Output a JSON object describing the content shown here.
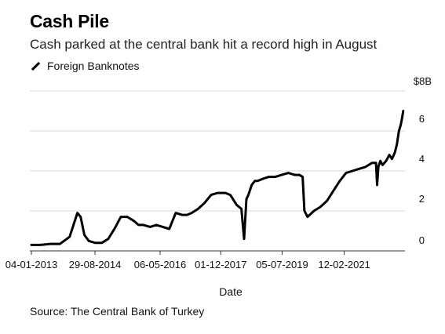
{
  "header": {
    "title": "Cash Pile",
    "subtitle": "Cash parked at the central bank hit a record high in August"
  },
  "source": "Source: The Central Bank of Turkey",
  "colors": {
    "line": "#000000",
    "grid": "#d9d9d9",
    "axis": "#333333"
  },
  "chart_data": {
    "type": "line",
    "title": "Cash Pile",
    "subtitle": "Cash parked at the central bank hit a record high in August",
    "xlabel": "Date",
    "ylabel": "",
    "y_unit_label": "$8B",
    "xlim": [
      "2012-12-20",
      "2022-09-10"
    ],
    "ylim": [
      0,
      8
    ],
    "yticks": [
      0,
      2,
      4,
      6
    ],
    "ytick_labels": [
      "0",
      "2",
      "4",
      "6"
    ],
    "xticks": [
      "2013-01-04",
      "2014-08-29",
      "2016-05-06",
      "2017-12-01",
      "2019-07-05",
      "2021-02-12"
    ],
    "xtick_labels": [
      "04-01-2013",
      "29-08-2014",
      "06-05-2016",
      "01-12-2017",
      "05-07-2019",
      "12-02-2021"
    ],
    "grid": true,
    "legend_position": "top-left",
    "series": [
      {
        "name": "Foreign Banknotes",
        "x": [
          "2013-01-04",
          "2013-04-01",
          "2013-07-01",
          "2013-10-01",
          "2014-01-01",
          "2014-03-15",
          "2014-04-15",
          "2014-05-20",
          "2014-07-01",
          "2014-09-01",
          "2014-11-01",
          "2015-01-01",
          "2015-03-01",
          "2015-05-01",
          "2015-07-01",
          "2015-09-01",
          "2015-10-15",
          "2015-12-01",
          "2016-02-01",
          "2016-04-01",
          "2016-06-01",
          "2016-08-01",
          "2016-10-01",
          "2016-12-01",
          "2017-01-15",
          "2017-03-01",
          "2017-05-01",
          "2017-07-01",
          "2017-09-01",
          "2017-11-01",
          "2017-12-15",
          "2018-01-15",
          "2018-03-01",
          "2018-05-01",
          "2018-06-15",
          "2018-07-10",
          "2018-08-01",
          "2018-08-20",
          "2018-09-20",
          "2018-10-20",
          "2018-11-15",
          "2019-01-01",
          "2019-03-01",
          "2019-05-01",
          "2019-07-01",
          "2019-09-01",
          "2019-11-01",
          "2019-12-15",
          "2020-01-15",
          "2020-02-01",
          "2020-03-01",
          "2020-05-01",
          "2020-07-01",
          "2020-09-01",
          "2020-11-01",
          "2021-01-01",
          "2021-03-01",
          "2021-05-01",
          "2021-07-01",
          "2021-09-01",
          "2021-11-01",
          "2021-12-10",
          "2021-12-20",
          "2022-01-01",
          "2022-01-20",
          "2022-02-10",
          "2022-03-15",
          "2022-04-15",
          "2022-05-10",
          "2022-06-05",
          "2022-06-25",
          "2022-07-15",
          "2022-08-01",
          "2022-08-12",
          "2022-08-25"
        ],
        "values": [
          0.3,
          0.3,
          0.35,
          0.35,
          0.7,
          1.9,
          1.7,
          0.8,
          0.5,
          0.4,
          0.4,
          0.6,
          1.1,
          1.7,
          1.7,
          1.5,
          1.3,
          1.3,
          1.2,
          1.3,
          1.2,
          1.1,
          1.9,
          1.8,
          1.8,
          1.9,
          2.1,
          2.4,
          2.8,
          2.9,
          2.9,
          2.9,
          2.8,
          2.3,
          2.1,
          0.6,
          2.6,
          2.8,
          3.3,
          3.5,
          3.5,
          3.6,
          3.7,
          3.7,
          3.8,
          3.9,
          3.8,
          3.8,
          3.7,
          2.0,
          1.7,
          2.0,
          2.2,
          2.5,
          3.0,
          3.5,
          3.9,
          4.0,
          4.1,
          4.2,
          4.4,
          4.4,
          3.3,
          4.2,
          4.5,
          4.3,
          4.5,
          4.8,
          4.6,
          4.9,
          5.3,
          6.0,
          6.3,
          6.6,
          7.0
        ]
      }
    ]
  }
}
